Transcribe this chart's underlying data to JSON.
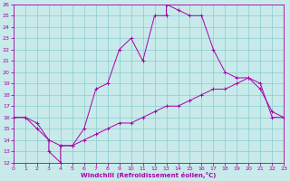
{
  "xlabel": "Windchill (Refroidissement éolien,°C)",
  "line_color": "#aa00aa",
  "bg_color": "#c8eaea",
  "grid_color": "#88cccc",
  "xlim": [
    0,
    23
  ],
  "ylim": [
    12,
    26
  ],
  "xticks": [
    0,
    1,
    2,
    3,
    4,
    5,
    6,
    7,
    8,
    9,
    10,
    11,
    12,
    13,
    14,
    15,
    16,
    17,
    18,
    19,
    20,
    21,
    22,
    23
  ],
  "yticks": [
    12,
    13,
    14,
    15,
    16,
    17,
    18,
    19,
    20,
    21,
    22,
    23,
    24,
    25,
    26
  ],
  "curve1_x": [
    0,
    1,
    2,
    3,
    3,
    4,
    4,
    5,
    6,
    7,
    8,
    9,
    10,
    11,
    12,
    13,
    13,
    14,
    15,
    16,
    17,
    18,
    19,
    20,
    21,
    22,
    23
  ],
  "curve1_y": [
    16,
    16,
    15.5,
    14,
    13,
    12,
    13.5,
    13.5,
    15,
    18.5,
    19,
    22,
    23,
    21,
    25,
    25,
    26,
    25.5,
    25,
    25,
    22,
    20,
    19.5,
    19.5,
    18.5,
    16.5,
    16
  ],
  "curve2_x": [
    0,
    1,
    2,
    3,
    4,
    5,
    6,
    7,
    8,
    9,
    10,
    11,
    12,
    13,
    14,
    15,
    16,
    17,
    18,
    19,
    20,
    21,
    22,
    23
  ],
  "curve2_y": [
    16,
    16,
    15,
    14,
    13.5,
    13.5,
    14,
    14.5,
    15,
    15.5,
    15.5,
    16,
    16.5,
    17,
    17,
    17.5,
    18,
    18.5,
    18.5,
    19,
    19.5,
    19,
    16,
    16
  ]
}
